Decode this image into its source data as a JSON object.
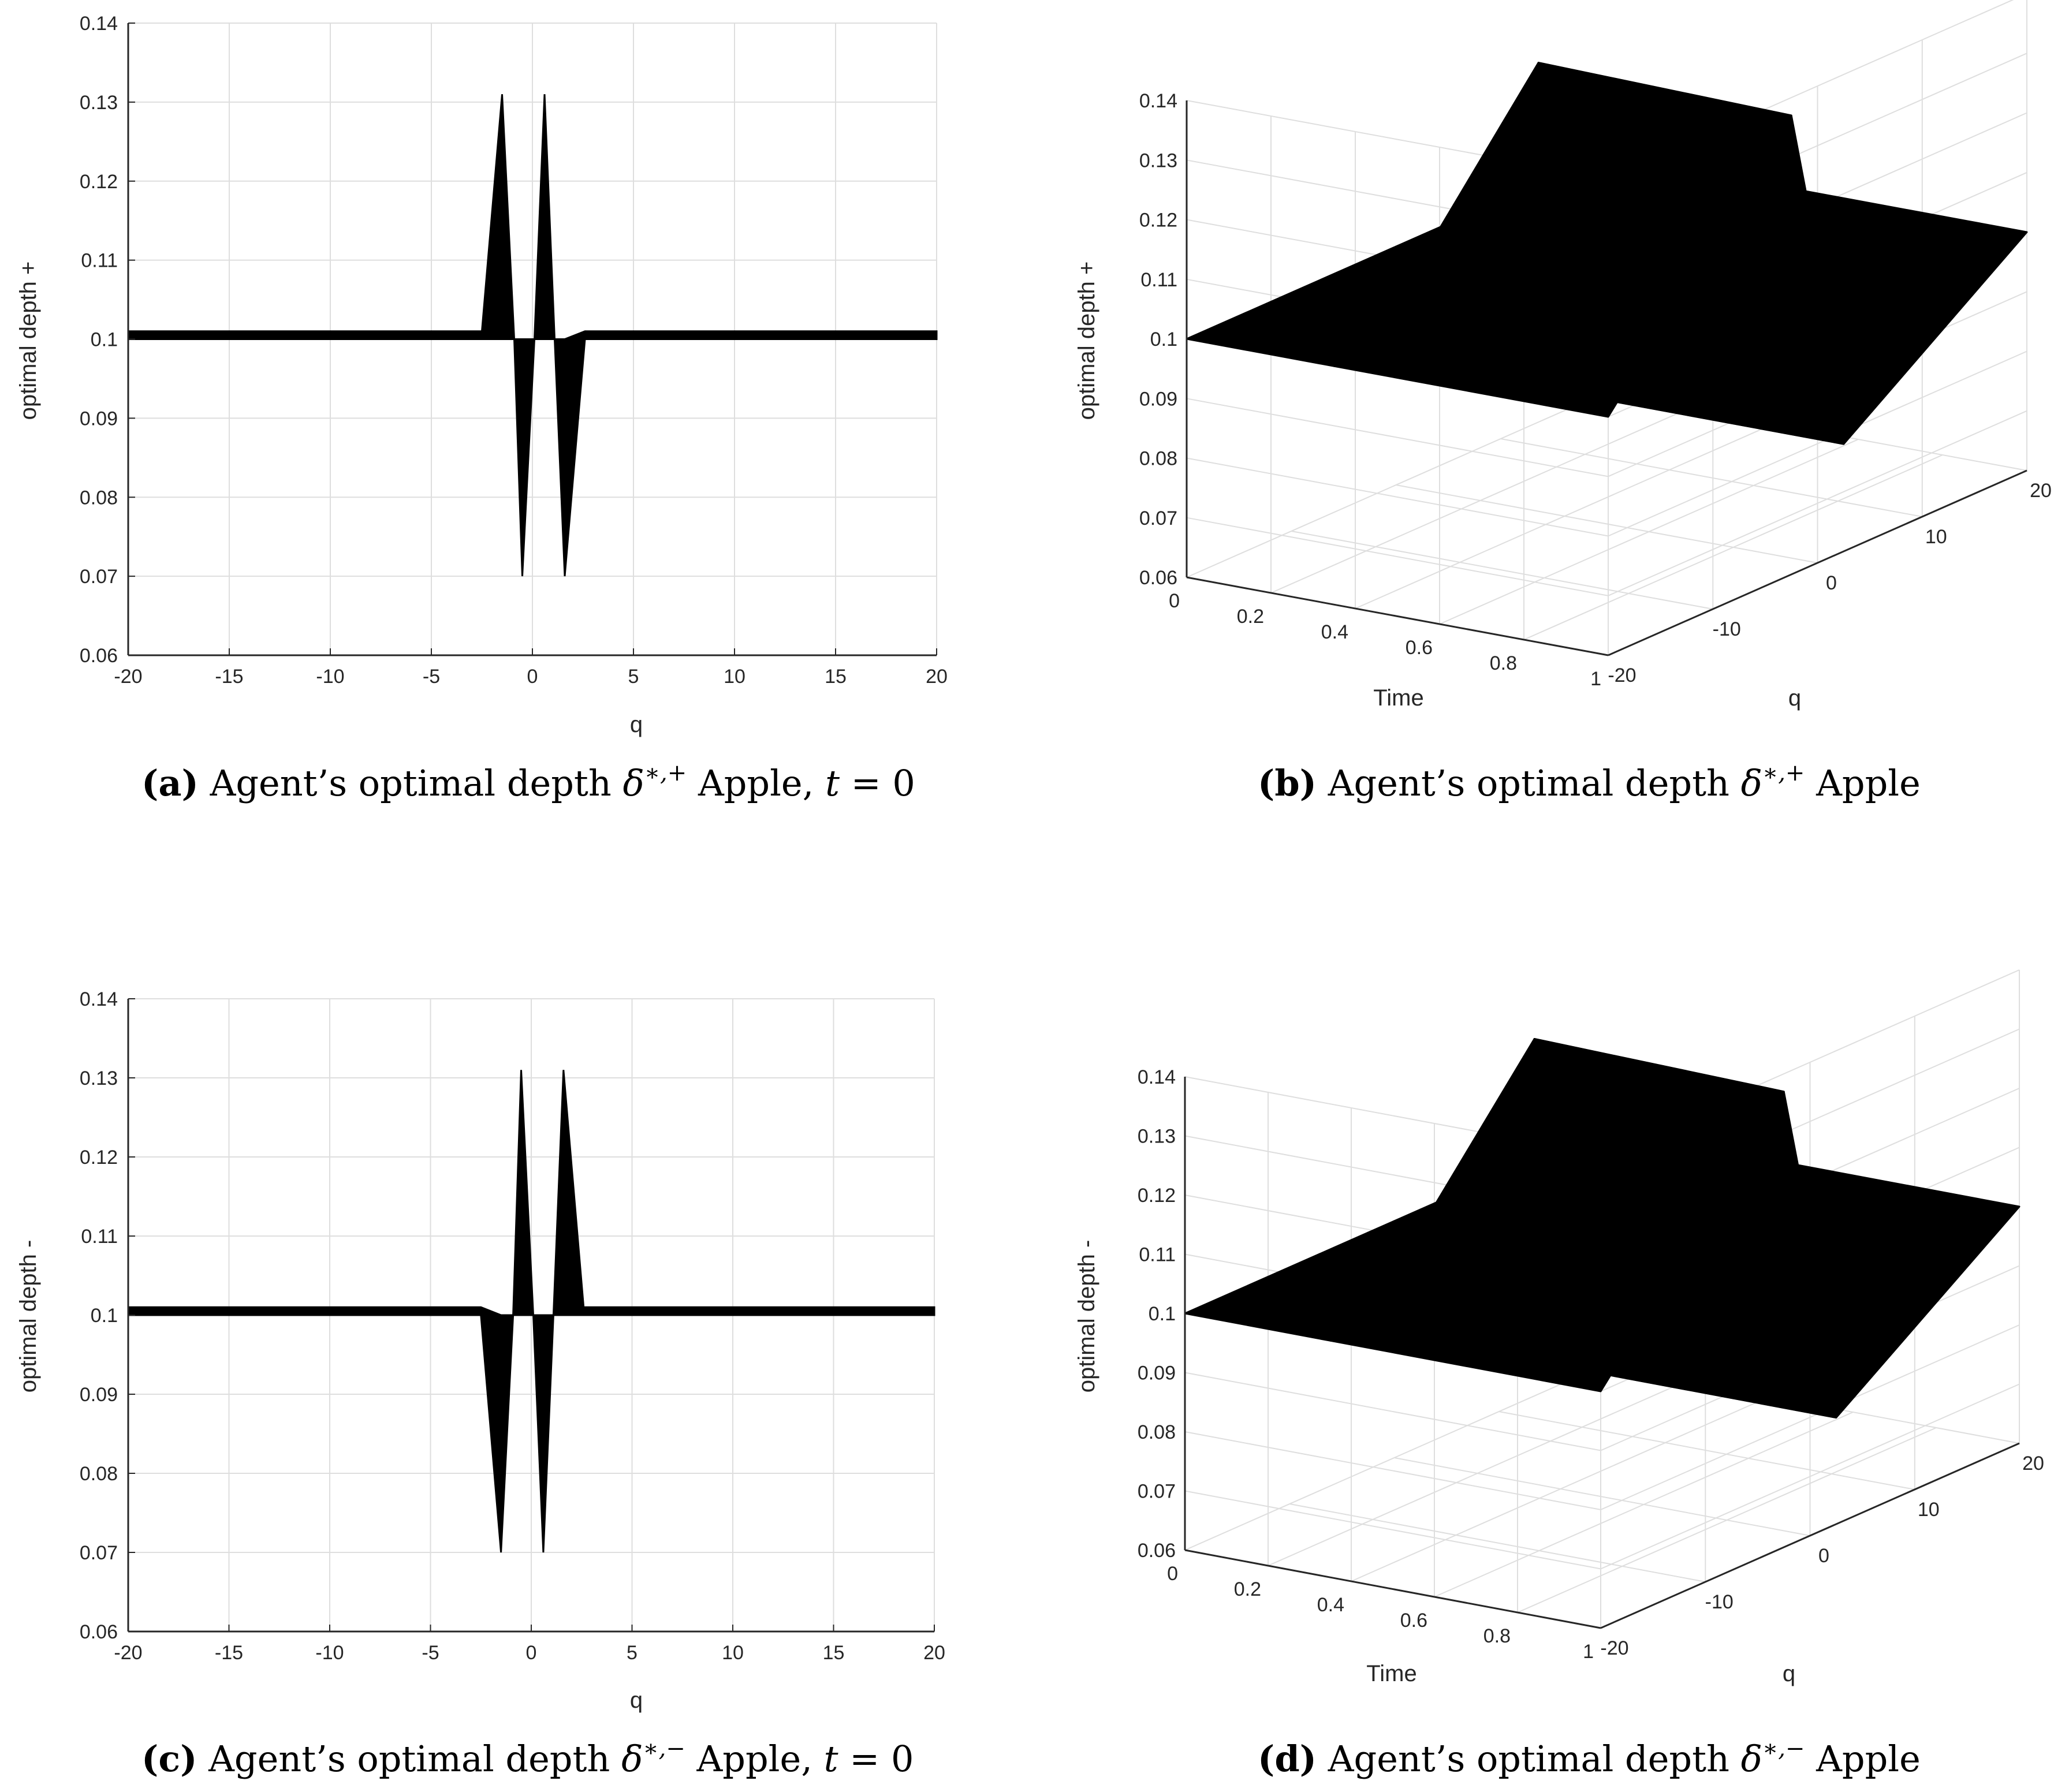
{
  "colors": {
    "data": "#000000",
    "grid": "#dedede",
    "axis": "#262626",
    "background": "#ffffff"
  },
  "chart_data": [
    {
      "id": "a",
      "type": "area",
      "xlabel": "q",
      "ylabel": "optimal depth +",
      "xlim": [
        -20,
        20
      ],
      "ylim": [
        0.06,
        0.14
      ],
      "grid": true,
      "xticks": [
        "-20",
        "-15",
        "-10",
        "-5",
        "0",
        "5",
        "10",
        "15",
        "20"
      ],
      "yticks": [
        "0.06",
        "0.07",
        "0.08",
        "0.09",
        "0.1",
        "0.11",
        "0.12",
        "0.13",
        "0.14"
      ],
      "x": [
        -20,
        -2.5,
        -1.5,
        -0.9,
        -0.5,
        0.1,
        0.6,
        1.1,
        1.6,
        2.6,
        20
      ],
      "upper": [
        0.101,
        0.101,
        0.131,
        0.1,
        0.1,
        0.1,
        0.131,
        0.1,
        0.1,
        0.101,
        0.101
      ],
      "lower": [
        0.1,
        0.1,
        0.1,
        0.1,
        0.07,
        0.1,
        0.1,
        0.1,
        0.07,
        0.1,
        0.1
      ],
      "caption": {
        "label": "(a)",
        "text": "Agent’s optimal depth",
        "symbol": "δ",
        "sup": "∗,+",
        "name": "Apple,",
        "var": "t",
        "eq": "= 0"
      }
    },
    {
      "id": "b",
      "type": "surface",
      "xlabel": "q",
      "ylabel": "Time",
      "zlabel": "optimal depth +",
      "xlim": [
        -20,
        20
      ],
      "ylim": [
        0,
        1
      ],
      "zlim": [
        0.06,
        0.14
      ],
      "grid": true,
      "xticks": [
        "-20",
        "-10",
        "0",
        "10",
        "20"
      ],
      "yticks": [
        "0",
        "0.2",
        "0.4",
        "0.6",
        "0.8",
        "1"
      ],
      "zticks": [
        "0.06",
        "0.07",
        "0.08",
        "0.09",
        "0.1",
        "0.11",
        "0.12",
        "0.13",
        "0.14"
      ],
      "t": [
        0,
        0.35,
        0.4,
        1
      ],
      "q": [
        -20,
        -2.5,
        0,
        2.5,
        20
      ],
      "z": [
        [
          0.1,
          0.1,
          0.1,
          0.1,
          0.1
        ],
        [
          0.1,
          0.105,
          0.1,
          0.078,
          0.1
        ],
        [
          0.1,
          0.138,
          0.1,
          0.078,
          0.1
        ],
        [
          0.1,
          0.137,
          0.112,
          0.078,
          0.1
        ]
      ],
      "caption": {
        "label": "(b)",
        "text": "Agent’s optimal depth",
        "symbol": "δ",
        "sup": "∗,+",
        "name": "Apple"
      }
    },
    {
      "id": "c",
      "type": "area",
      "xlabel": "q",
      "ylabel": "optimal depth -",
      "xlim": [
        -20,
        20
      ],
      "ylim": [
        0.06,
        0.14
      ],
      "grid": true,
      "xticks": [
        "-20",
        "-15",
        "-10",
        "-5",
        "0",
        "5",
        "10",
        "15",
        "20"
      ],
      "yticks": [
        "0.06",
        "0.07",
        "0.08",
        "0.09",
        "0.1",
        "0.11",
        "0.12",
        "0.13",
        "0.14"
      ],
      "x": [
        -20,
        -2.5,
        -1.5,
        -0.9,
        -0.5,
        0.1,
        0.6,
        1.1,
        1.6,
        2.6,
        20
      ],
      "upper": [
        0.101,
        0.101,
        0.1,
        0.1,
        0.131,
        0.1,
        0.1,
        0.1,
        0.131,
        0.101,
        0.101
      ],
      "lower": [
        0.1,
        0.1,
        0.07,
        0.1,
        0.1,
        0.1,
        0.07,
        0.1,
        0.1,
        0.1,
        0.1
      ],
      "caption": {
        "label": "(c)",
        "text": "Agent’s optimal depth",
        "symbol": "δ",
        "sup": "∗,−",
        "name": "Apple,",
        "var": "t",
        "eq": "= 0"
      }
    },
    {
      "id": "d",
      "type": "surface",
      "xlabel": "q",
      "ylabel": "Time",
      "zlabel": "optimal depth -",
      "xlim": [
        -20,
        20
      ],
      "ylim": [
        0,
        1
      ],
      "zlim": [
        0.06,
        0.14
      ],
      "grid": true,
      "xticks": [
        "-20",
        "-10",
        "0",
        "10",
        "20"
      ],
      "yticks": [
        "0",
        "0.2",
        "0.4",
        "0.6",
        "0.8",
        "1"
      ],
      "zticks": [
        "0.06",
        "0.07",
        "0.08",
        "0.09",
        "0.1",
        "0.11",
        "0.12",
        "0.13",
        "0.14"
      ],
      "t": [
        0,
        0.35,
        0.4,
        1
      ],
      "q": [
        -20,
        -2.5,
        0,
        2.5,
        20
      ],
      "z": [
        [
          0.1,
          0.1,
          0.1,
          0.1,
          0.1
        ],
        [
          0.1,
          0.105,
          0.1,
          0.078,
          0.1
        ],
        [
          0.1,
          0.138,
          0.1,
          0.078,
          0.1
        ],
        [
          0.1,
          0.137,
          0.112,
          0.078,
          0.1
        ]
      ],
      "caption": {
        "label": "(d)",
        "text": "Agent’s optimal depth",
        "symbol": "δ",
        "sup": "∗,−",
        "name": "Apple"
      }
    }
  ]
}
